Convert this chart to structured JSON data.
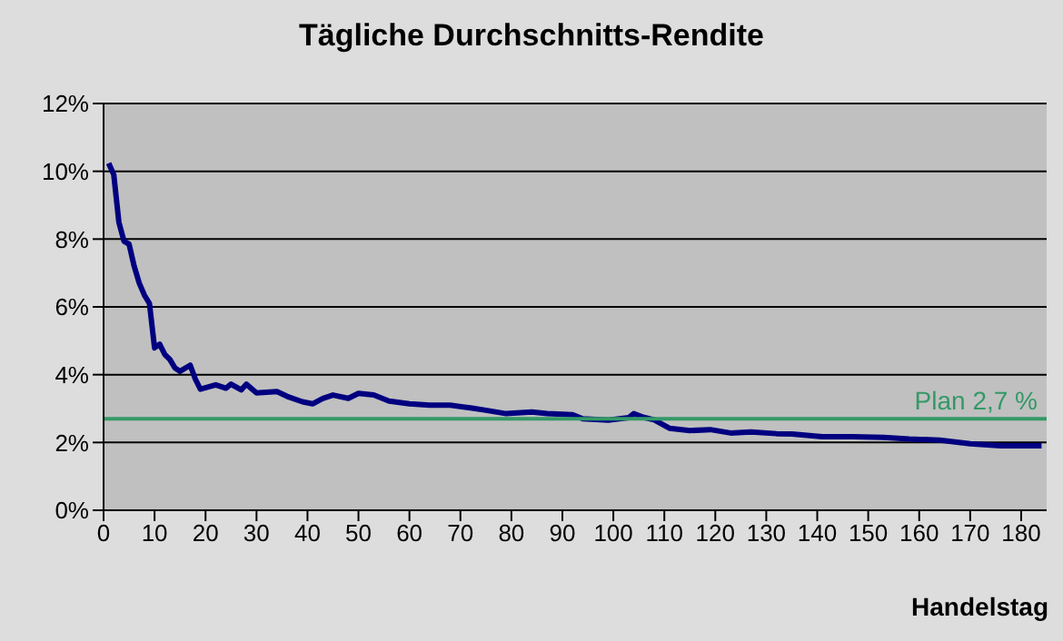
{
  "chart_data": {
    "type": "line",
    "title": "Tägliche Durchschnitts-Rendite",
    "xlabel": "Handelstag",
    "x": [
      1,
      2,
      3,
      4,
      5,
      6,
      7,
      8,
      9,
      10,
      11,
      12,
      13,
      14,
      15,
      17,
      18,
      19,
      22,
      24,
      25,
      27,
      28,
      30,
      34,
      36,
      39,
      41,
      43,
      45,
      48,
      50,
      53,
      56,
      60,
      64,
      68,
      72,
      75,
      79,
      84,
      87,
      92,
      94,
      99,
      103,
      104,
      106,
      108,
      111,
      115,
      119,
      123,
      127,
      132,
      135,
      141,
      147,
      153,
      158,
      164,
      170,
      176,
      184
    ],
    "series": [
      {
        "color": "#000080",
        "values": [
          10.24,
          9.9,
          8.5,
          7.94,
          7.85,
          7.2,
          6.7,
          6.35,
          6.1,
          4.79,
          4.9,
          4.6,
          4.45,
          4.2,
          4.1,
          4.28,
          3.87,
          3.57,
          3.7,
          3.6,
          3.72,
          3.55,
          3.72,
          3.46,
          3.5,
          3.36,
          3.2,
          3.14,
          3.3,
          3.4,
          3.3,
          3.45,
          3.4,
          3.22,
          3.14,
          3.1,
          3.1,
          3.02,
          2.95,
          2.85,
          2.9,
          2.85,
          2.82,
          2.7,
          2.66,
          2.73,
          2.85,
          2.74,
          2.67,
          2.42,
          2.35,
          2.38,
          2.28,
          2.31,
          2.26,
          2.25,
          2.17,
          2.17,
          2.15,
          2.1,
          2.07,
          1.96,
          1.9,
          1.9
        ]
      }
    ],
    "xlim": [
      0,
      185
    ],
    "xticks": [
      0,
      10,
      20,
      30,
      40,
      50,
      60,
      70,
      80,
      90,
      100,
      110,
      120,
      130,
      140,
      150,
      160,
      170,
      180
    ],
    "ylim": [
      0,
      12
    ],
    "yticks": [
      {
        "value": 0,
        "label": "0%"
      },
      {
        "value": 2,
        "label": "2%"
      },
      {
        "value": 4,
        "label": "4%"
      },
      {
        "value": 6,
        "label": "6%"
      },
      {
        "value": 8,
        "label": "8%"
      },
      {
        "value": 10,
        "label": "10%"
      },
      {
        "value": 12,
        "label": "12%"
      }
    ],
    "ref_lines": [
      {
        "axis": "y",
        "value": 2.7,
        "label": "Plan 2,7 %",
        "color": "#339966"
      }
    ],
    "grid": "y",
    "marker": "none",
    "line_style": "solid"
  }
}
